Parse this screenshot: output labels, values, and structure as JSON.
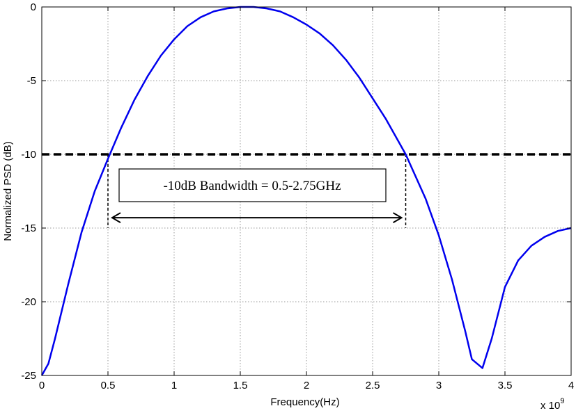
{
  "chart_data": {
    "type": "line",
    "xlabel": "Frequency(Hz)",
    "ylabel": "Normalized PSD (dB)",
    "x_multiplier": "x 10",
    "x_multiplier_exp": "9",
    "xlim": [
      0,
      4
    ],
    "ylim": [
      -25,
      0
    ],
    "grid": true,
    "x_ticks": [
      0,
      0.5,
      1,
      1.5,
      2,
      2.5,
      3,
      3.5,
      4
    ],
    "x_tick_labels": [
      "0",
      "0.5",
      "1",
      "1.5",
      "2",
      "2.5",
      "3",
      "3.5",
      "4"
    ],
    "y_ticks": [
      0,
      -5,
      -10,
      -15,
      -20,
      -25
    ],
    "y_tick_labels": [
      "0",
      "-5",
      "-10",
      "-15",
      "-20",
      "-25"
    ],
    "series": [
      {
        "color": "#0000ee",
        "x": [
          0.0,
          0.05,
          0.1,
          0.2,
          0.3,
          0.4,
          0.5,
          0.6,
          0.7,
          0.8,
          0.9,
          1.0,
          1.1,
          1.2,
          1.3,
          1.4,
          1.5,
          1.6,
          1.7,
          1.8,
          1.9,
          2.0,
          2.1,
          2.2,
          2.3,
          2.4,
          2.5,
          2.6,
          2.7,
          2.75,
          2.8,
          2.9,
          3.0,
          3.1,
          3.2,
          3.25,
          3.33,
          3.4,
          3.5,
          3.6,
          3.7,
          3.8,
          3.9,
          4.0
        ],
        "y": [
          -25.0,
          -24.2,
          -22.5,
          -18.8,
          -15.3,
          -12.5,
          -10.3,
          -8.2,
          -6.3,
          -4.7,
          -3.3,
          -2.2,
          -1.3,
          -0.7,
          -0.3,
          -0.1,
          0.0,
          0.0,
          -0.1,
          -0.3,
          -0.7,
          -1.2,
          -1.8,
          -2.6,
          -3.6,
          -4.8,
          -6.2,
          -7.6,
          -9.2,
          -10.0,
          -11.0,
          -13.0,
          -15.5,
          -18.5,
          -22.0,
          -23.9,
          -24.5,
          -22.5,
          -19.0,
          -17.2,
          -16.2,
          -15.6,
          -15.2,
          -15.0
        ]
      }
    ],
    "reference_line": {
      "y": -10,
      "style": "dashed"
    },
    "markers_x": [
      0.5,
      2.75
    ],
    "annotation": {
      "text": "-10dB Bandwidth = 0.5-2.75GHz",
      "range": [
        0.5,
        2.75
      ]
    }
  }
}
